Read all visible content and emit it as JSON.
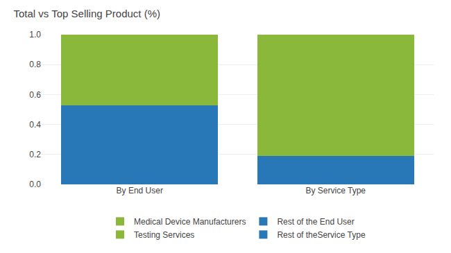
{
  "chart_data": {
    "type": "bar",
    "title": "Total vs Top Selling Product (%)",
    "categories": [
      "By End User",
      "By Service Type"
    ],
    "stacked": true,
    "series": [
      {
        "name": "Rest of theService Type",
        "color": "#2878b8",
        "values": [
          null,
          0.19
        ]
      },
      {
        "name": "Testing Services",
        "color": "#8ab83a",
        "values": [
          null,
          0.81
        ]
      },
      {
        "name": "Rest of the End User",
        "color": "#2878b8",
        "values": [
          0.53,
          null
        ]
      },
      {
        "name": "Medical Device Manufacturers",
        "color": "#8ab83a",
        "values": [
          0.47,
          null
        ]
      }
    ],
    "ylim": [
      0.0,
      1.0
    ],
    "yticks": [
      {
        "value": 0.0,
        "label": "0.0"
      },
      0.2,
      0.4,
      0.6,
      0.8,
      {
        "value": 1.0,
        "label": "1.0"
      }
    ],
    "grid": true,
    "legend": "bottom"
  }
}
